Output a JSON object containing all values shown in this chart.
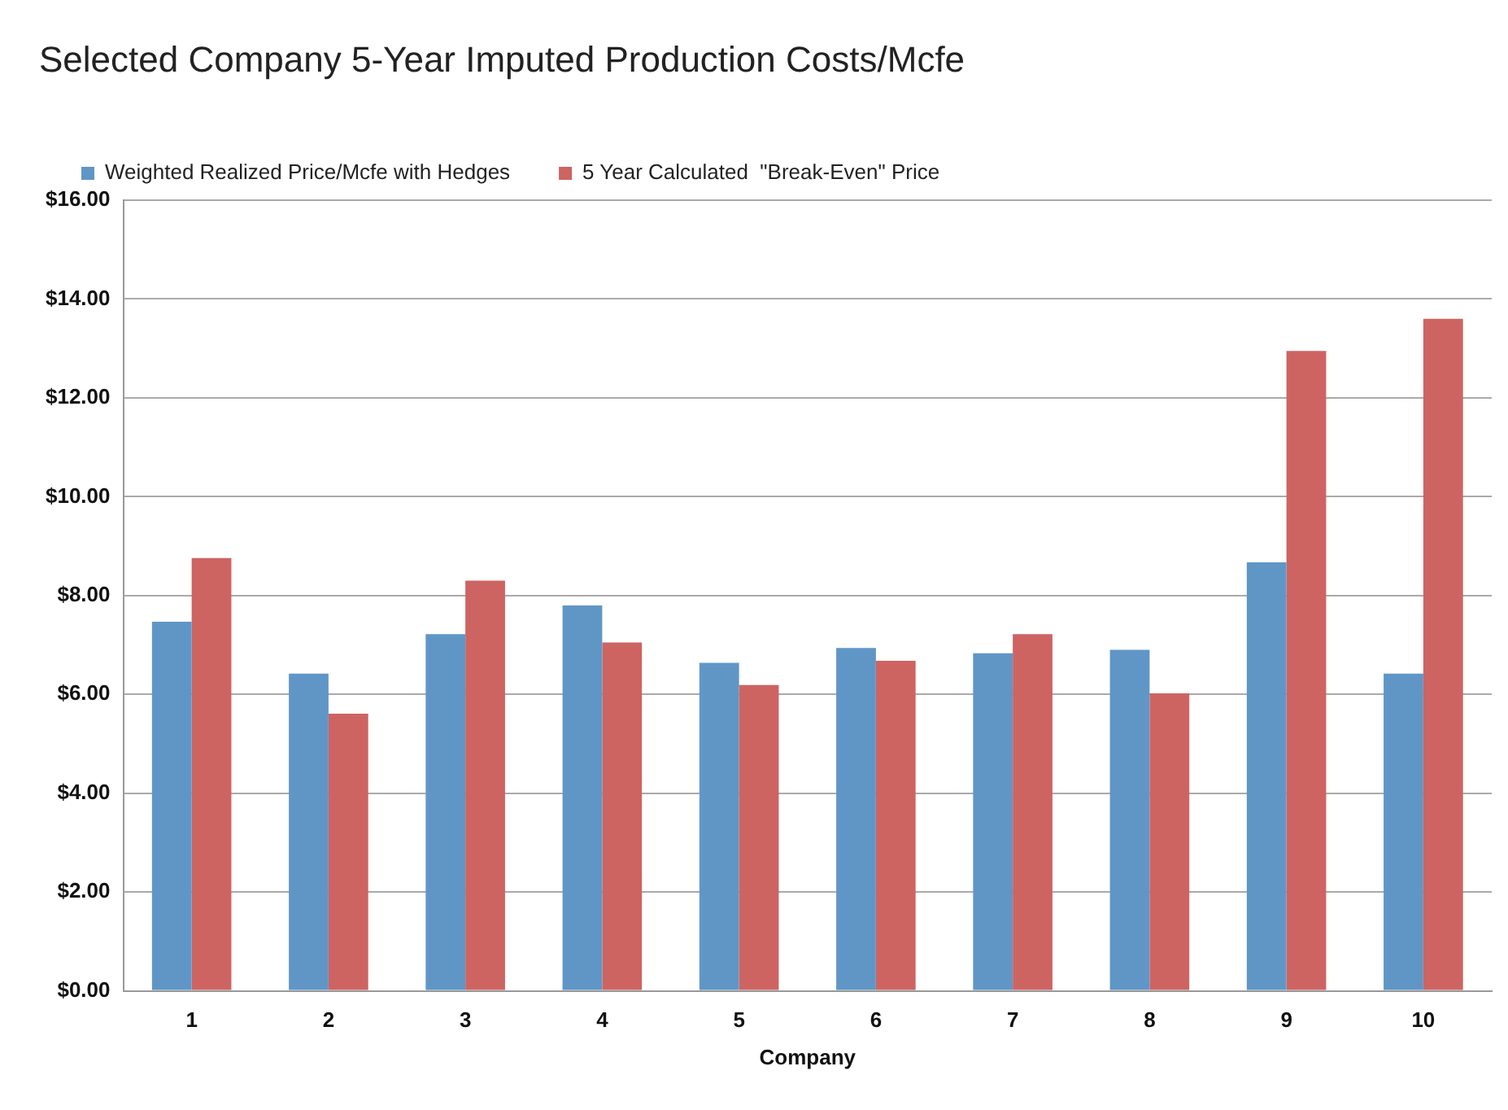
{
  "chart_data": {
    "type": "bar",
    "title": "Selected Company 5-Year Imputed Production Costs/Mcfe",
    "xlabel": "Company",
    "categories": [
      "1",
      "2",
      "3",
      "4",
      "5",
      "6",
      "7",
      "8",
      "9",
      "10"
    ],
    "series": [
      {
        "name": "Weighted Realized Price/Mcfe with Hedges",
        "color": "#6096c6",
        "values": [
          7.47,
          6.42,
          7.22,
          7.8,
          6.64,
          6.94,
          6.83,
          6.9,
          8.67,
          6.42
        ]
      },
      {
        "name": "5 Year Calculated  \"Break-Even\" Price",
        "color": "#cd6462",
        "values": [
          8.76,
          5.61,
          8.3,
          7.05,
          6.19,
          6.68,
          7.22,
          6.02,
          12.95,
          13.6
        ]
      }
    ],
    "ylim": [
      0,
      16
    ],
    "yticks": [
      {
        "value": 0,
        "label": "$0.00"
      },
      {
        "value": 2,
        "label": "$2.00"
      },
      {
        "value": 4,
        "label": "$4.00"
      },
      {
        "value": 6,
        "label": "$6.00"
      },
      {
        "value": 8,
        "label": "$8.00"
      },
      {
        "value": 10,
        "label": "$10.00"
      },
      {
        "value": 12,
        "label": "$12.00"
      },
      {
        "value": 14,
        "label": "$14.00"
      },
      {
        "value": 16,
        "label": "$16.00"
      }
    ],
    "grid": "y",
    "legend": "top left"
  }
}
